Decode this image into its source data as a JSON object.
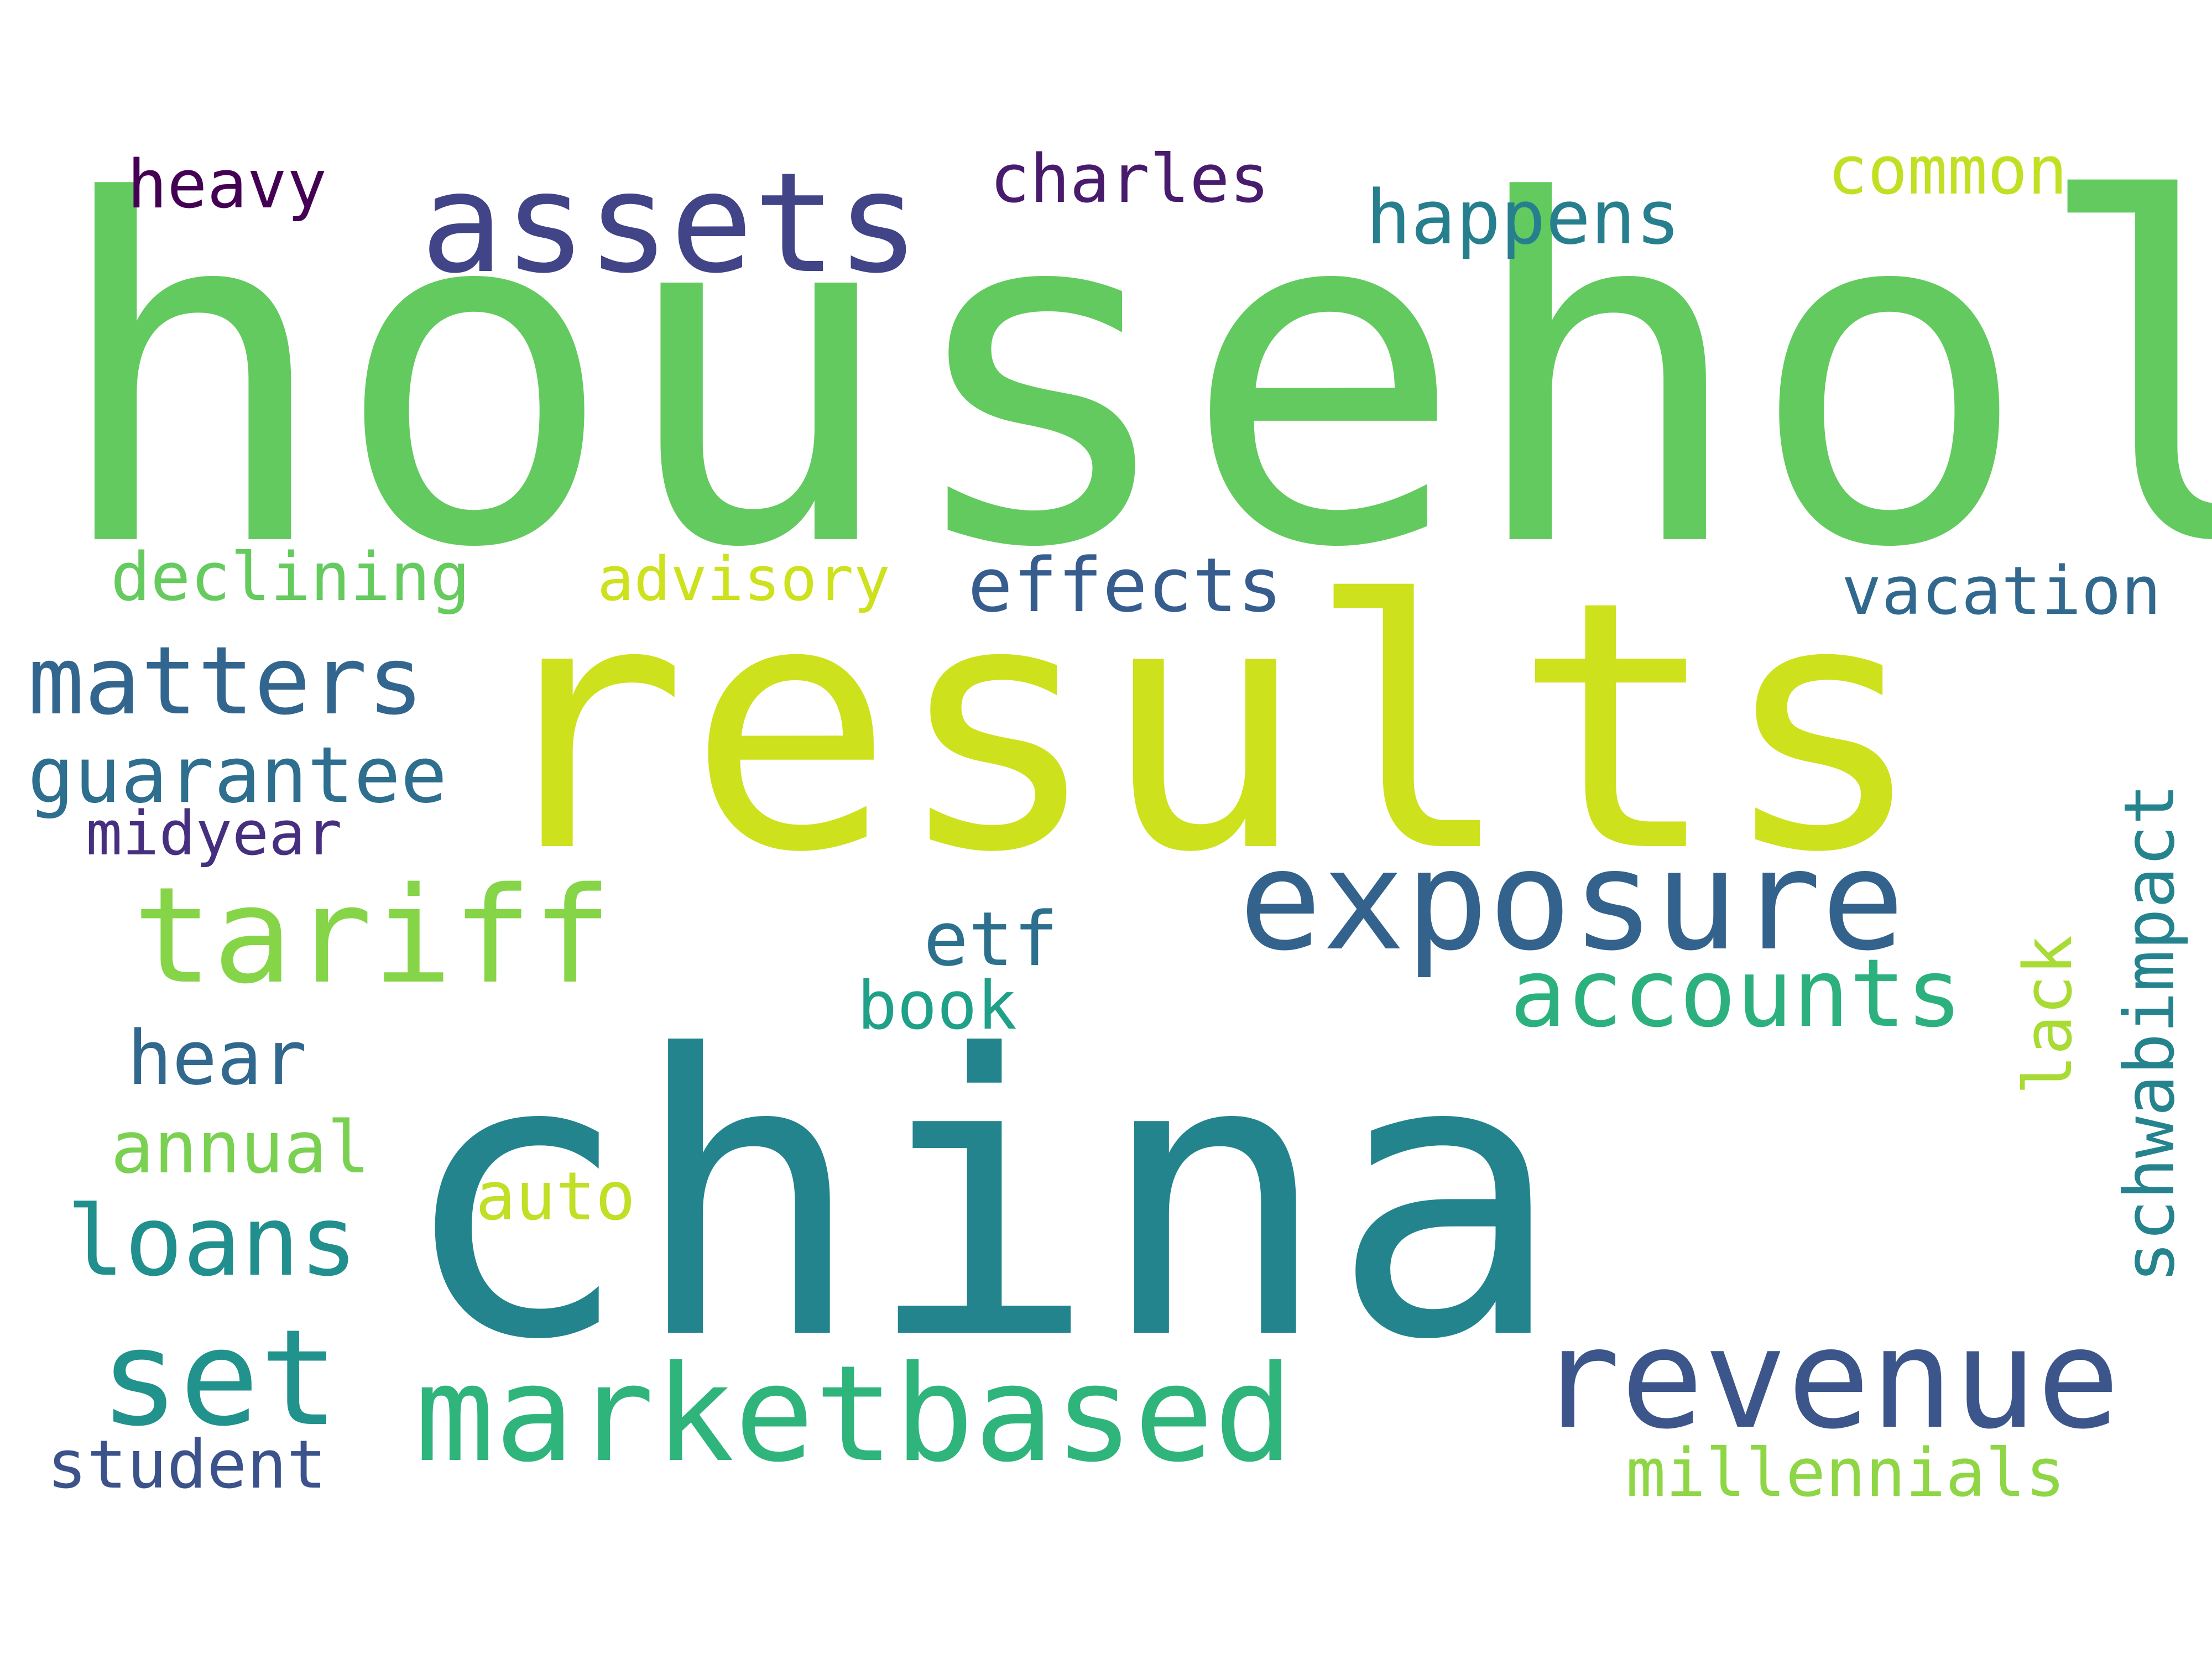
{
  "words": [
    {
      "text": "household",
      "color": "#63ca5f"
    },
    {
      "text": "results",
      "color": "#cde11d"
    },
    {
      "text": "china",
      "color": "#23848d"
    },
    {
      "text": "assets",
      "color": "#414487"
    },
    {
      "text": "exposure",
      "color": "#33628d"
    },
    {
      "text": "marketbased",
      "color": "#2fb47c"
    },
    {
      "text": "revenue",
      "color": "#3c568b"
    },
    {
      "text": "tariff",
      "color": "#86d549"
    },
    {
      "text": "matters",
      "color": "#32668e"
    },
    {
      "text": "set",
      "color": "#21928c"
    },
    {
      "text": "accounts",
      "color": "#2cb17e"
    },
    {
      "text": "loans",
      "color": "#208f8d"
    },
    {
      "text": "schwabimpact",
      "color": "#25838e"
    },
    {
      "text": "happens",
      "color": "#277f8e"
    },
    {
      "text": "charles",
      "color": "#481b6d"
    },
    {
      "text": "heavy",
      "color": "#440154"
    },
    {
      "text": "common",
      "color": "#c2df23"
    },
    {
      "text": "declining",
      "color": "#65cb5e"
    },
    {
      "text": "advisory",
      "color": "#cde11d"
    },
    {
      "text": "effects",
      "color": "#365d8d"
    },
    {
      "text": "vacation",
      "color": "#31688e"
    },
    {
      "text": "guarantee",
      "color": "#2e6e8e"
    },
    {
      "text": "midyear",
      "color": "#462f7e"
    },
    {
      "text": "etf",
      "color": "#2d708e"
    },
    {
      "text": "book",
      "color": "#1fa088"
    },
    {
      "text": "hear",
      "color": "#31688e"
    },
    {
      "text": "lack",
      "color": "#a8db34"
    },
    {
      "text": "annual",
      "color": "#7ad151"
    },
    {
      "text": "auto",
      "color": "#c0df25"
    },
    {
      "text": "student",
      "color": "#3b528b"
    },
    {
      "text": "millennials",
      "color": "#8ed645"
    }
  ]
}
